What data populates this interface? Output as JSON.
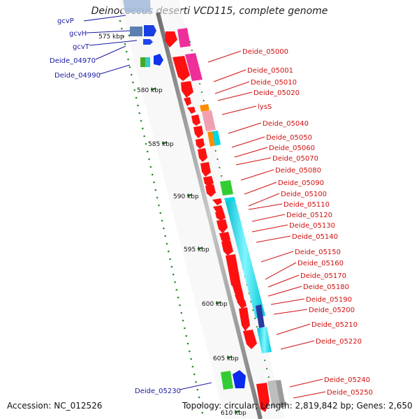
{
  "title": "Deinococcus deserti VCD115, complete genome",
  "accession_label": "Accession: NC_012526",
  "topology_label": "Topology: circular; Length: 2,819,842 bp; Genes: 2,650",
  "colors": {
    "backbone": "#9a9a9a",
    "ruler_ticks": "#2e8b2e",
    "left_labels": "#1a1aa0",
    "right_labels": "#d01010",
    "gene_forward": "#ff0000",
    "cds_cyan": "#00e5ee",
    "cds_magenta": "#ee3aa0",
    "cds_pink": "#f0a0b0",
    "cds_green": "#33cc33",
    "cds_orange": "#ff8c00",
    "cds_blue": "#0000ee",
    "cds_gray": "#b0b0b0"
  },
  "ruler": [
    {
      "label": "575 kbp"
    },
    {
      "label": "580 kbp"
    },
    {
      "label": "585 kbp"
    },
    {
      "label": "590 kbp"
    },
    {
      "label": "595 kbp"
    },
    {
      "label": "600 kbp"
    },
    {
      "label": "605 kbp"
    },
    {
      "label": "610 kbp"
    }
  ],
  "left_genes": [
    {
      "label": "gcvP"
    },
    {
      "label": "gcvH"
    },
    {
      "label": "gcvT"
    },
    {
      "label": "Deide_04970"
    },
    {
      "label": "Deide_04990"
    },
    {
      "label": "Deide_05230"
    }
  ],
  "right_genes": [
    {
      "label": "Deide_05000"
    },
    {
      "label": "Deide_05001"
    },
    {
      "label": "Deide_05010"
    },
    {
      "label": "Deide_05020"
    },
    {
      "label": "lysS"
    },
    {
      "label": "Deide_05040"
    },
    {
      "label": "Deide_05050"
    },
    {
      "label": "Deide_05060"
    },
    {
      "label": "Deide_05070"
    },
    {
      "label": "Deide_05080"
    },
    {
      "label": "Deide_05090"
    },
    {
      "label": "Deide_05100"
    },
    {
      "label": "Deide_05110"
    },
    {
      "label": "Deide_05120"
    },
    {
      "label": "Deide_05130"
    },
    {
      "label": "Deide_05140"
    },
    {
      "label": "Deide_05150"
    },
    {
      "label": "Deide_05160"
    },
    {
      "label": "Deide_05170"
    },
    {
      "label": "Deide_05180"
    },
    {
      "label": "Deide_05190"
    },
    {
      "label": "Deide_05200"
    },
    {
      "label": "Deide_05210"
    },
    {
      "label": "Deide_05220"
    },
    {
      "label": "Deide_05240"
    },
    {
      "label": "Deide_05250"
    }
  ]
}
